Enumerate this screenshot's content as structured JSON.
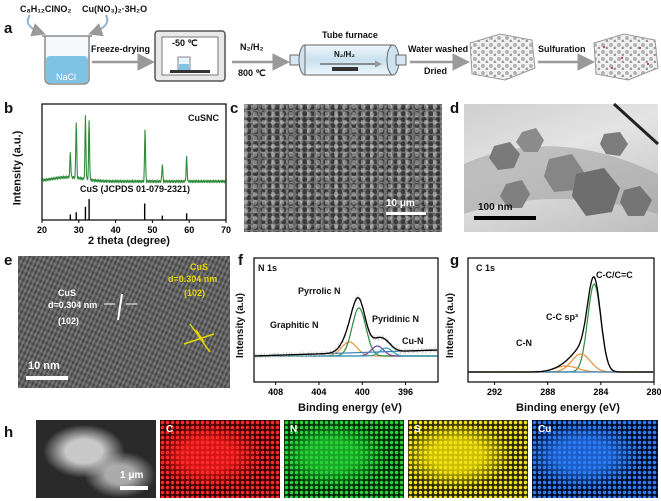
{
  "panel_a": {
    "letter": "a",
    "chem1": "C₈H₁₂ClNO₂",
    "chem2": "Cu(NO₃)₂·3H₂O",
    "beaker_label": "NaCl",
    "step1": "Freeze-drying",
    "freezer_temp": "-50 ℃",
    "gas": "N₂/H₂",
    "temp": "800 ℃",
    "furnace_title": "Tube furnace",
    "furnace_gas": "N₂/H₂",
    "step3a": "Water washed",
    "step3b": "Dried",
    "step4": "Sulfuration"
  },
  "panel_b": {
    "letter": "b",
    "sample": "CuSNC",
    "reference": "CuS (JCPDS 01-079-2321)",
    "xlabel": "2 theta (degree)",
    "ylabel": "Intensity (a.u.)"
  },
  "panel_c": {
    "letter": "c",
    "scale": "10 μm"
  },
  "panel_d": {
    "letter": "d",
    "scale": "100 nm"
  },
  "panel_e": {
    "letter": "e",
    "label1": "CuS",
    "d1": "d=0.304 nm",
    "hkl1": "(102)",
    "label2": "CuS",
    "d2": "d=0.304 nm",
    "hkl2": "(102)",
    "scale": "10 nm"
  },
  "panel_f": {
    "letter": "f",
    "title": "N 1s",
    "peaks": [
      "Pyrrolic N",
      "Graphitic N",
      "Pyridinic N",
      "Cu-N"
    ],
    "xlabel": "Binding energy (eV)",
    "ylabel": "Intensity (a.u)"
  },
  "panel_g": {
    "letter": "g",
    "title": "C 1s",
    "peaks": [
      "C-C/C=C",
      "C-C sp³",
      "C-N"
    ],
    "xlabel": "Binding energy (eV)",
    "ylabel": "Intensity (a.u)"
  },
  "panel_h": {
    "letter": "h",
    "scale": "1 μm",
    "maps": [
      "C",
      "N",
      "S",
      "Cu"
    ]
  },
  "chart_data": [
    {
      "type": "line",
      "panel": "b",
      "xlabel": "2 theta (degree)",
      "ylabel": "Intensity (a.u.)",
      "xlim": [
        20,
        70
      ],
      "x_ticks": [
        20,
        30,
        40,
        50,
        60,
        70
      ],
      "series": [
        {
          "name": "CuSNC",
          "color": "#2e8b3a",
          "peaks_2theta": [
            27.7,
            29.3,
            31.8,
            32.8,
            48.0,
            52.7,
            59.3
          ]
        },
        {
          "name": "CuS (JCPDS 01-079-2321)",
          "color": "#000000",
          "sticks_2theta": [
            27.7,
            29.3,
            31.8,
            32.8,
            47.9,
            52.7,
            59.3
          ],
          "sticks_rel_intensity": [
            0.25,
            0.35,
            0.6,
            0.95,
            0.75,
            0.2,
            0.3
          ]
        }
      ]
    },
    {
      "type": "line",
      "panel": "f",
      "title": "N 1s",
      "xlabel": "Binding energy (eV)",
      "ylabel": "Intensity (a.u)",
      "xlim": [
        410,
        393
      ],
      "x_ticks": [
        408,
        404,
        400,
        396
      ],
      "peaks_eV": {
        "Graphitic N": 401.2,
        "Pyrrolic N": 400.3,
        "Pyridinic N": 398.6,
        "Cu-N": 397.8
      }
    },
    {
      "type": "line",
      "panel": "g",
      "title": "C 1s",
      "xlabel": "Binding energy (eV)",
      "ylabel": "Intensity (a.u)",
      "xlim": [
        294,
        280
      ],
      "x_ticks": [
        292,
        288,
        284,
        280
      ],
      "peaks_eV": {
        "C-C/C=C": 284.5,
        "C-C sp³": 285.5,
        "C-N": 286.6
      }
    }
  ]
}
